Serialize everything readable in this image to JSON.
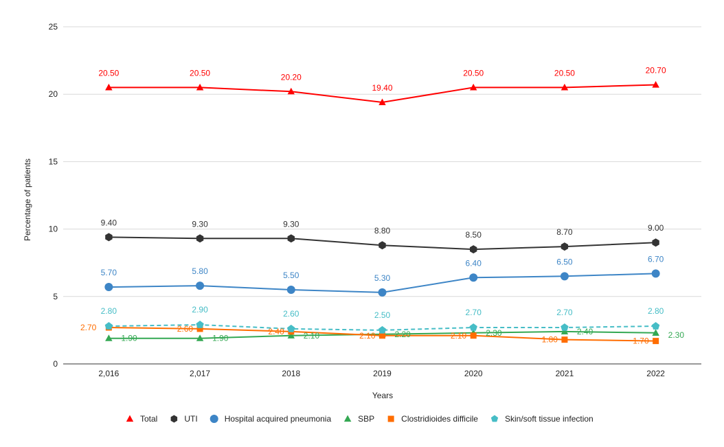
{
  "chart_data": {
    "type": "line",
    "title": "",
    "xlabel": "Years",
    "ylabel": "Percentage of patients",
    "categories": [
      "2,016",
      "2,017",
      "2018",
      "2019",
      "2020",
      "2021",
      "2022"
    ],
    "ylim": [
      0,
      25
    ],
    "yticks": [
      0,
      5,
      10,
      15,
      20,
      25
    ],
    "grid": true,
    "legend_position": "bottom",
    "series": [
      {
        "name": "Total",
        "color": "#ff0000",
        "marker": "triangle",
        "dashed": false,
        "values": [
          20.5,
          20.5,
          20.2,
          19.4,
          20.5,
          20.5,
          20.7
        ],
        "labels": [
          "20.50",
          "20.50",
          "20.20",
          "19.40",
          "20.50",
          "20.50",
          "20.70"
        ]
      },
      {
        "name": "UTI",
        "color": "#333333",
        "marker": "hexagon",
        "dashed": false,
        "values": [
          9.4,
          9.3,
          9.3,
          8.8,
          8.5,
          8.7,
          9.0
        ],
        "labels": [
          "9.40",
          "9.30",
          "9.30",
          "8.80",
          "8.50",
          "8.70",
          "9.00"
        ]
      },
      {
        "name": "Hospital acquired pneumonia",
        "color": "#3d85c6",
        "marker": "circle",
        "dashed": false,
        "values": [
          5.7,
          5.8,
          5.5,
          5.3,
          6.4,
          6.5,
          6.7
        ],
        "labels": [
          "5.70",
          "5.80",
          "5.50",
          "5.30",
          "6.40",
          "6.50",
          "6.70"
        ]
      },
      {
        "name": "SBP",
        "color": "#34a853",
        "marker": "triangle",
        "dashed": false,
        "values": [
          1.9,
          1.9,
          2.1,
          2.2,
          2.3,
          2.4,
          2.3
        ],
        "labels": [
          "1.90",
          "1.90",
          "2.10",
          "2.20",
          "2.30",
          "2.40",
          "2.30"
        ]
      },
      {
        "name": "Clostridioides difficile",
        "color": "#ff6d01",
        "marker": "square",
        "dashed": false,
        "values": [
          2.7,
          2.6,
          2.4,
          2.1,
          2.1,
          1.8,
          1.7
        ],
        "labels": [
          "2.70",
          "2.60",
          "2.40",
          "2.10",
          "2.10",
          "1.80",
          "1.70"
        ]
      },
      {
        "name": "Skin/soft tissue infection",
        "color": "#46bdc6",
        "marker": "pentagon",
        "dashed": true,
        "values": [
          2.8,
          2.9,
          2.6,
          2.5,
          2.7,
          2.7,
          2.8
        ],
        "labels": [
          "2.80",
          "2.90",
          "2.60",
          "2.50",
          "2.70",
          "2.70",
          "2.80"
        ]
      }
    ]
  }
}
